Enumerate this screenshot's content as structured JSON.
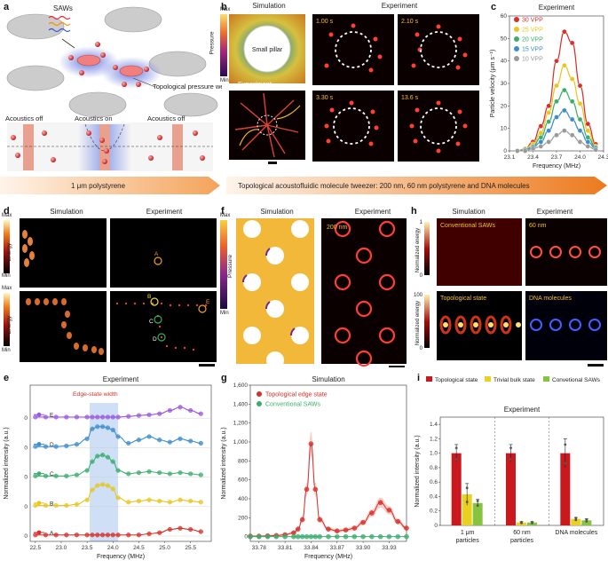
{
  "panels": {
    "a": {
      "letter": "a",
      "saws": "SAWs",
      "wells": "Topological pressure wells",
      "off1": "Acoustics off",
      "on": "Acoustics on",
      "off2": "Acoustics off"
    },
    "b": {
      "letter": "b",
      "sim": "Simulation",
      "exp": "Experiment",
      "exp2": "Experiment",
      "pillar": "Small pillar",
      "max": "Max",
      "min": "Min",
      "pressure": "Pressure",
      "times": [
        "1.00 s",
        "2.10 s",
        "3.30 s",
        "13.6 s"
      ]
    },
    "c": {
      "letter": "c",
      "title": "Experiment"
    },
    "banner": {
      "left": "1 μm polystyrene",
      "right": "Topological acoustofluidic molecule tweezer: 200 nm, 60 nm polystyrene and DNA molecules"
    },
    "d": {
      "letter": "d",
      "sim": "Simulation",
      "exp": "Experiment",
      "max": "Max",
      "min": "Min",
      "energy": "Energy",
      "max2": "Max",
      "min2": "Min",
      "energy2": "Energy",
      "pts": [
        "A",
        "B",
        "C",
        "D",
        "E"
      ]
    },
    "e": {
      "letter": "e",
      "title": "Experiment",
      "edge": "Edge-state width"
    },
    "f": {
      "letter": "f",
      "sim": "Simulation",
      "exp": "Experiment",
      "max": "Max",
      "min": "Min",
      "pressure": "Pressure",
      "size": "200 nm"
    },
    "g": {
      "letter": "g",
      "title": "Simulation"
    },
    "h": {
      "letter": "h",
      "sim": "Simulation",
      "exp": "Experiment",
      "conv": "Conventional SAWs",
      "topo": "Topological state",
      "p60": "60 nm",
      "dna": "DNA molecules",
      "ne1": "Normalized energy",
      "ne2": "Normalized energy",
      "one": "1",
      "zero1": "0",
      "hundred": "100",
      "zero2": "0"
    },
    "i": {
      "letter": "i",
      "title": "Experiment",
      "leg1": "Topological state",
      "leg2": "Trivial bulk state",
      "leg3": "Convetional SAWs"
    }
  },
  "chart_data": [
    {
      "id": "c",
      "type": "line",
      "title": "Experiment",
      "xlabel": "Frequency (MHz)",
      "ylabel": "Particle velocity (μm s⁻¹)",
      "xlim": [
        23.1,
        24.3
      ],
      "ylim": [
        0,
        60
      ],
      "xticks": [
        "23.1",
        "23.4",
        "23.7",
        "24.0",
        "24.3"
      ],
      "yticks": [
        "0",
        "10",
        "20",
        "30",
        "40",
        "50",
        "60"
      ],
      "x": [
        23.2,
        23.3,
        23.4,
        23.5,
        23.6,
        23.7,
        23.8,
        23.9,
        24.0,
        24.1,
        24.2
      ],
      "series": [
        {
          "name": "30 VPP",
          "color": "#d7302a",
          "values": [
            0,
            1,
            4,
            11,
            20,
            40,
            53,
            48,
            29,
            12,
            3
          ]
        },
        {
          "name": "25 VPP",
          "color": "#e8c61f",
          "values": [
            0,
            1,
            3,
            8,
            17,
            29,
            38,
            32,
            21,
            9,
            2
          ]
        },
        {
          "name": "20 VPP",
          "color": "#3bae6e",
          "values": [
            0,
            0.5,
            2,
            6,
            13,
            22,
            27,
            22,
            14,
            6,
            1.5
          ]
        },
        {
          "name": "15 VPP",
          "color": "#3d8dcc",
          "values": [
            0,
            0.5,
            1.5,
            4,
            9,
            15,
            18,
            14,
            9,
            4,
            1
          ]
        },
        {
          "name": "10 VPP",
          "color": "#9a9a9a",
          "values": [
            0,
            0,
            1,
            2,
            4,
            7,
            9,
            7,
            4,
            2,
            0.5
          ]
        }
      ]
    },
    {
      "id": "e",
      "type": "line",
      "title": "Experiment",
      "xlabel": "Frequency (MHz)",
      "ylabel": "Normalized intensity (a.u.)",
      "xlim": [
        22.4,
        25.9
      ],
      "xticks": [
        "22.5",
        "23.0",
        "23.5",
        "24.0",
        "24.5",
        "25.0",
        "25.5"
      ],
      "band": [
        23.55,
        24.1
      ],
      "x": [
        22.5,
        22.7,
        22.9,
        23.1,
        23.3,
        23.5,
        23.6,
        23.7,
        23.8,
        23.9,
        24.0,
        24.1,
        24.3,
        24.5,
        24.7,
        24.9,
        25.1,
        25.3,
        25.5,
        25.7
      ],
      "series": [
        {
          "name": "E",
          "color": "#9b59e0",
          "values": [
            0.05,
            0.05,
            0.05,
            0.05,
            0.05,
            0.05,
            0.05,
            0.05,
            0.05,
            0.05,
            0.05,
            0.05,
            0.08,
            0.12,
            0.15,
            0.2,
            0.35,
            0.5,
            0.35,
            0.2
          ]
        },
        {
          "name": "D",
          "color": "#3d8dcc",
          "values": [
            0.05,
            0.05,
            0.05,
            0.08,
            0.15,
            0.4,
            0.85,
            0.95,
            0.95,
            0.9,
            0.8,
            0.5,
            0.2,
            0.35,
            0.5,
            0.35,
            0.25,
            0.4,
            0.3,
            0.2
          ]
        },
        {
          "name": "C",
          "color": "#3bae6e",
          "values": [
            0.05,
            0.05,
            0.05,
            0.05,
            0.1,
            0.3,
            0.7,
            0.95,
            1.0,
            0.9,
            0.7,
            0.3,
            0.15,
            0.2,
            0.25,
            0.2,
            0.15,
            0.2,
            0.15,
            0.1
          ]
        },
        {
          "name": "B",
          "color": "#e8c61f",
          "values": [
            0.05,
            0.05,
            0.05,
            0.05,
            0.1,
            0.3,
            0.75,
            0.95,
            1.0,
            0.95,
            0.8,
            0.4,
            0.2,
            0.25,
            0.3,
            0.25,
            0.2,
            0.3,
            0.25,
            0.2
          ]
        },
        {
          "name": "A",
          "color": "#d7302a",
          "values": [
            0.05,
            0.05,
            0.05,
            0.05,
            0.05,
            0.05,
            0.05,
            0.05,
            0.05,
            0.05,
            0.05,
            0.05,
            0.05,
            0.05,
            0.1,
            0.15,
            0.3,
            0.35,
            0.3,
            0.2
          ]
        }
      ]
    },
    {
      "id": "g",
      "type": "line",
      "title": "Simulation",
      "xlabel": "Frequency (MHz)",
      "ylabel": "Normalized intensity (a.u.)",
      "xlim": [
        33.77,
        33.95
      ],
      "ylim": [
        -50,
        1600
      ],
      "xticks": [
        "33.78",
        "33.81",
        "33.84",
        "33.87",
        "33.90",
        "33.93"
      ],
      "yticks": [
        "0",
        "200",
        "400",
        "600",
        "800",
        "1,000",
        "1,200",
        "1,400",
        "1,600"
      ],
      "x": [
        33.77,
        33.78,
        33.79,
        33.8,
        33.81,
        33.82,
        33.825,
        33.83,
        33.835,
        33.84,
        33.845,
        33.85,
        33.86,
        33.87,
        33.88,
        33.89,
        33.9,
        33.91,
        33.92,
        33.93,
        33.94,
        33.95
      ],
      "series": [
        {
          "name": "Topological edge state",
          "color": "#d7302a",
          "values": [
            5,
            5,
            8,
            12,
            20,
            40,
            80,
            180,
            500,
            980,
            500,
            180,
            80,
            60,
            70,
            90,
            150,
            250,
            360,
            280,
            160,
            90
          ]
        },
        {
          "name": "Conventional SAWs",
          "color": "#3bae6e",
          "values": [
            0,
            0,
            0,
            0,
            0,
            0,
            0,
            0,
            0,
            0,
            0,
            0,
            0,
            0,
            0,
            0,
            0,
            0,
            0,
            0,
            0,
            0
          ]
        }
      ]
    },
    {
      "id": "i",
      "type": "bar",
      "title": "Experiment",
      "ylabel": "Normalized intensity (a.u.)",
      "ylim": [
        0,
        1.5
      ],
      "yticks": [
        "0",
        "0.2",
        "0.4",
        "0.6",
        "0.8",
        "1.0",
        "1.2",
        "1.4"
      ],
      "categories": [
        "1 μm particles",
        "60 nm particles",
        "DNA molecules"
      ],
      "series": [
        {
          "name": "Topological state",
          "color": "#c9191e",
          "values": [
            1.0,
            1.0,
            1.0
          ],
          "err": [
            0.12,
            0.12,
            0.2
          ]
        },
        {
          "name": "Trivial bulk state",
          "color": "#e8d21f",
          "values": [
            0.43,
            0.04,
            0.09
          ],
          "err": [
            0.15,
            0.01,
            0.02
          ]
        },
        {
          "name": "Convetional SAWs",
          "color": "#86c440",
          "values": [
            0.31,
            0.04,
            0.07
          ],
          "err": [
            0.05,
            0.01,
            0.02
          ]
        }
      ]
    }
  ]
}
